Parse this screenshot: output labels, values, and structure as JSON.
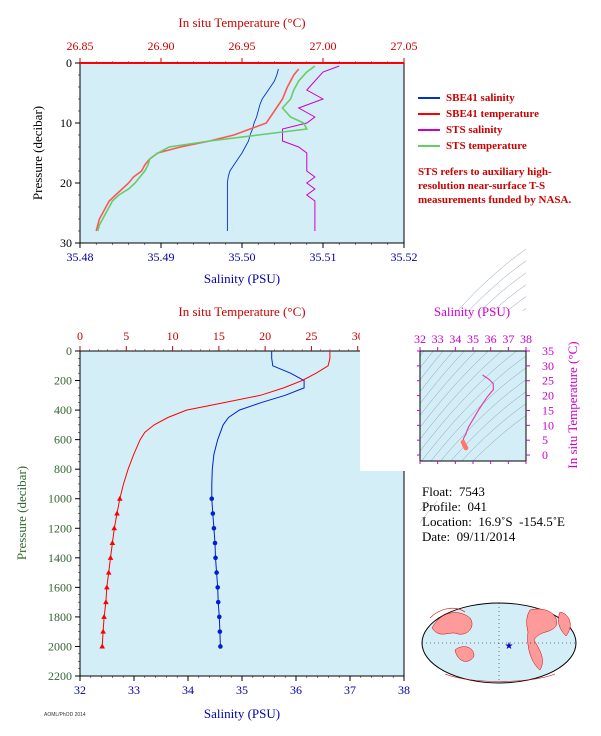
{
  "top_chart": {
    "top_axis_label": "In situ Temperature (°C)",
    "bottom_axis_label": "Salinity (PSU)",
    "left_axis_label": "Pressure (decibar)",
    "legend": [
      {
        "label": "SBE41 salinity",
        "color": "#0033cc"
      },
      {
        "label": "SBE41 temperature",
        "color": "#ff0000"
      },
      {
        "label": "STS salinity",
        "color": "#cc00cc"
      },
      {
        "label": "STS temperature",
        "color": "#66cc66"
      }
    ],
    "note": "STS refers to auxiliary high-resolution near-surface T-S measurements funded by NASA."
  },
  "bottom_chart": {
    "top_axis_label": "In situ Temperature (°C)",
    "bottom_axis_label": "Salinity (PSU)",
    "left_axis_label": "Pressure (decibar)"
  },
  "ts_inset": {
    "top_axis_label": "Salinity (PSU)",
    "right_axis_label": "In situ Temperature (°C)"
  },
  "float_info": {
    "float": "Float:  7543",
    "profile": "Profile:  041",
    "location": "Location:  16.9˚S  -154.5˚E",
    "date": "Date:  09/11/2014"
  },
  "credit": "AOML/PhOD 2014",
  "colors": {
    "plot_bg": "#d4eef8",
    "red": "#ff0000",
    "blue": "#0022cc",
    "magenta": "#cc00cc",
    "green": "#66cc66",
    "axis_red": "#cc0000",
    "axis_blue": "#0000aa",
    "axis_green": "#336633"
  },
  "chart_data": [
    {
      "type": "line",
      "title": "",
      "xlabel": "Salinity (PSU)",
      "x2label": "In situ Temperature (°C)",
      "ylabel": "Pressure (decibar)",
      "xlim": [
        35.48,
        35.52
      ],
      "x2lim": [
        26.85,
        27.05
      ],
      "ylim": [
        30,
        0
      ],
      "xticks": [
        35.48,
        35.49,
        35.5,
        35.51,
        35.52
      ],
      "x2ticks": [
        26.85,
        26.9,
        26.95,
        27.0,
        27.05
      ],
      "yticks": [
        0,
        10,
        20,
        30
      ],
      "xtick_labels": [
        "35.48",
        "35.49",
        "35.50",
        "35.51",
        "35.52"
      ],
      "x2tick_labels": [
        "26.85",
        "26.90",
        "26.95",
        "27.00",
        "27.05"
      ],
      "series": [
        {
          "name": "SBE41 salinity",
          "axis": "bottom",
          "y": [
            1,
            2,
            3,
            4,
            5,
            6,
            7,
            8,
            9,
            10,
            11,
            12,
            13,
            14,
            15,
            16,
            17,
            18,
            19,
            20,
            21,
            22,
            23,
            24,
            25,
            26,
            27,
            28
          ],
          "x": [
            35.5045,
            35.5043,
            35.504,
            35.5035,
            35.503,
            35.5025,
            35.5022,
            35.502,
            35.5018,
            35.5015,
            35.5013,
            35.501,
            35.5008,
            35.5004,
            35.5,
            35.4995,
            35.499,
            35.4985,
            35.4983,
            35.4982,
            35.4982,
            35.4982,
            35.4982,
            35.4982,
            35.4982,
            35.4982,
            35.4982,
            35.4982
          ]
        },
        {
          "name": "SBE41 temperature",
          "axis": "top",
          "y": [
            1,
            2,
            4,
            6,
            8,
            10,
            11,
            12,
            13,
            14,
            15,
            16,
            17,
            18,
            19,
            20,
            21,
            22,
            23,
            24,
            25,
            26,
            27,
            28
          ],
          "x": [
            26.985,
            26.982,
            26.978,
            26.975,
            26.97,
            26.965,
            26.955,
            26.945,
            26.93,
            26.912,
            26.898,
            26.893,
            26.89,
            26.888,
            26.883,
            26.88,
            26.876,
            26.872,
            26.868,
            26.866,
            26.864,
            26.862,
            26.861,
            26.86
          ]
        },
        {
          "name": "STS salinity",
          "axis": "bottom",
          "y": [
            0.5,
            1.5,
            3,
            4.5,
            6,
            7.5,
            9,
            10,
            11,
            12,
            13,
            14,
            15,
            16,
            17,
            18,
            19,
            20,
            21,
            22,
            23,
            24,
            25,
            26,
            27,
            28
          ],
          "x": [
            35.512,
            35.51,
            35.509,
            35.508,
            35.51,
            35.507,
            35.509,
            35.508,
            35.505,
            35.505,
            35.505,
            35.507,
            35.508,
            35.508,
            35.508,
            35.508,
            35.509,
            35.508,
            35.509,
            35.508,
            35.509,
            35.509,
            35.509,
            35.509,
            35.509,
            35.509
          ]
        },
        {
          "name": "STS temperature",
          "axis": "top",
          "y": [
            0.5,
            1.5,
            3,
            4.5,
            6,
            7.5,
            9,
            10,
            11,
            12,
            13,
            14,
            15,
            16,
            17,
            18,
            19,
            20,
            21,
            22,
            23,
            24,
            25,
            26,
            27,
            28
          ],
          "x": [
            26.995,
            26.99,
            26.985,
            26.982,
            26.98,
            26.975,
            26.98,
            26.988,
            26.99,
            26.96,
            26.93,
            26.905,
            26.898,
            26.893,
            26.892,
            26.89,
            26.887,
            26.884,
            26.88,
            26.874,
            26.87,
            26.868,
            26.866,
            26.864,
            26.862,
            26.861
          ]
        }
      ]
    },
    {
      "type": "line",
      "title": "",
      "xlabel": "Salinity (PSU)",
      "x2label": "In situ Temperature (°C)",
      "ylabel": "Pressure (decibar)",
      "xlim": [
        32,
        38
      ],
      "x2lim": [
        0,
        35
      ],
      "ylim": [
        2200,
        0
      ],
      "xticks": [
        32,
        33,
        34,
        35,
        36,
        37,
        38
      ],
      "x2ticks": [
        0,
        5,
        10,
        15,
        20,
        25,
        30,
        35
      ],
      "yticks": [
        0,
        200,
        400,
        600,
        800,
        1000,
        1200,
        1400,
        1600,
        1800,
        2000,
        2200
      ],
      "series": [
        {
          "name": "Salinity",
          "axis": "bottom",
          "y": [
            0,
            50,
            100,
            150,
            200,
            250,
            300,
            350,
            400,
            450,
            500,
            550,
            600,
            700,
            800,
            900,
            1000,
            1100,
            1200,
            1300,
            1400,
            1500,
            1600,
            1700,
            1800,
            1900,
            2000
          ],
          "x": [
            35.55,
            35.55,
            35.57,
            35.9,
            36.15,
            36.15,
            35.8,
            35.35,
            34.95,
            34.75,
            34.65,
            34.6,
            34.55,
            34.48,
            34.45,
            34.44,
            34.44,
            34.46,
            34.48,
            34.5,
            34.51,
            34.53,
            34.55,
            34.56,
            34.58,
            34.59,
            34.6
          ]
        },
        {
          "name": "Temperature",
          "axis": "top",
          "y": [
            0,
            50,
            100,
            150,
            200,
            250,
            300,
            350,
            400,
            450,
            500,
            550,
            600,
            700,
            800,
            900,
            1000,
            1100,
            1200,
            1300,
            1400,
            1500,
            1600,
            1700,
            1800,
            1900,
            2000
          ],
          "x": [
            27.0,
            27.0,
            26.8,
            25.5,
            24.0,
            22.0,
            19.5,
            15.5,
            11.5,
            9.5,
            8.0,
            7.0,
            6.5,
            5.8,
            5.2,
            4.7,
            4.3,
            4.0,
            3.7,
            3.5,
            3.3,
            3.1,
            2.9,
            2.8,
            2.6,
            2.5,
            2.4
          ]
        }
      ]
    },
    {
      "type": "scatter",
      "title": "",
      "xlabel": "Salinity (PSU)",
      "ylabel": "In situ Temperature (°C)",
      "xlim": [
        32,
        38
      ],
      "ylim": [
        -2,
        35
      ],
      "xticks": [
        32,
        33,
        34,
        35,
        36,
        37,
        38
      ],
      "yticks": [
        0,
        5,
        10,
        15,
        20,
        25,
        30,
        35
      ],
      "series": [
        {
          "name": "T-S",
          "x": [
            35.55,
            35.57,
            35.9,
            36.15,
            36.15,
            35.8,
            35.35,
            34.95,
            34.75,
            34.65,
            34.6,
            34.55,
            34.48,
            34.45,
            34.44,
            34.44,
            34.5,
            34.55,
            34.6
          ],
          "y": [
            27.0,
            26.8,
            25.5,
            24.0,
            22.0,
            19.5,
            15.5,
            11.5,
            9.5,
            8.0,
            7.0,
            6.5,
            5.8,
            5.2,
            4.7,
            4.3,
            3.5,
            2.9,
            2.4
          ]
        }
      ]
    }
  ]
}
